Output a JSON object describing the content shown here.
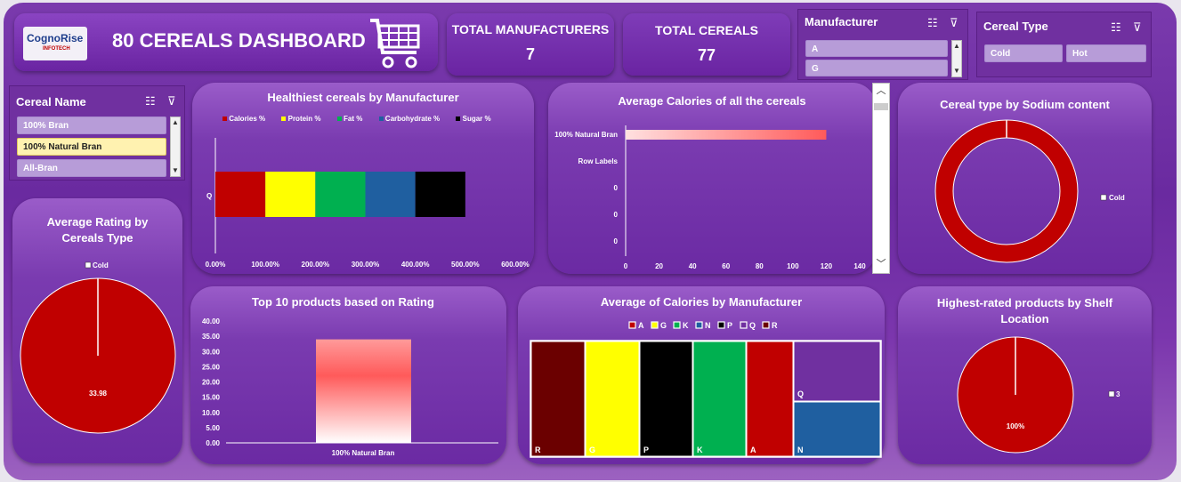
{
  "header": {
    "logo_main": "CognoRise",
    "logo_sub": "INFOTECH",
    "title": "80 CEREALS DASHBOARD"
  },
  "kpis": {
    "manufacturers_label": "TOTAL MANUFACTURERS",
    "manufacturers_value": "7",
    "cereals_label": "TOTAL CEREALS",
    "cereals_value": "77"
  },
  "slicers": {
    "manufacturer": {
      "title": "Manufacturer",
      "items": [
        "A",
        "G"
      ]
    },
    "cereal_type": {
      "title": "Cereal Type",
      "items": [
        "Cold",
        "Hot"
      ]
    },
    "cereal_name": {
      "title": "Cereal Name",
      "items": [
        "100% Bran",
        "100% Natural Bran",
        "All-Bran"
      ],
      "selected": "100% Natural Bran"
    }
  },
  "colors": {
    "calories": "#c00000",
    "protein": "#ffff00",
    "fat": "#00b050",
    "carbs": "#1f5fa0",
    "sugar": "#000000",
    "A": "#c00000",
    "G": "#ffff00",
    "K": "#00b050",
    "N": "#1f5fa0",
    "P": "#000000",
    "Q": "#7030a0",
    "R": "#6b0000"
  },
  "charts": {
    "healthiest": {
      "chart_data": {
        "type": "bar",
        "title": "Healthiest cereals by Manufacturer",
        "categories": [
          "Q"
        ],
        "series": [
          {
            "name": "Calories %",
            "values": [
              1.0
            ]
          },
          {
            "name": "Protein %",
            "values": [
              1.0
            ]
          },
          {
            "name": "Fat %",
            "values": [
              1.0
            ]
          },
          {
            "name": "Carbohydrate %",
            "values": [
              1.0
            ]
          },
          {
            "name": "Sugar %",
            "values": [
              1.0
            ]
          }
        ],
        "xticks": [
          "0.00%",
          "100.00%",
          "200.00%",
          "300.00%",
          "400.00%",
          "500.00%",
          "600.00%"
        ],
        "xlim": [
          0,
          6
        ]
      }
    },
    "avg_calories": {
      "chart_data": {
        "type": "bar",
        "title": "Average Calories of all the cereals",
        "categories": [
          "100% Natural Bran",
          "Row Labels",
          "0",
          "0",
          "0"
        ],
        "values": [
          120,
          0,
          0,
          0,
          0
        ],
        "xticks": [
          "0",
          "20",
          "40",
          "60",
          "80",
          "100",
          "120",
          "140"
        ],
        "xlim": [
          0,
          140
        ]
      }
    },
    "sodium": {
      "chart_data": {
        "type": "pie",
        "title": "Cereal type by Sodium content",
        "labels": [
          "Cold"
        ],
        "values": [
          100
        ],
        "legend": "Cold"
      }
    },
    "avg_rating": {
      "chart_data": {
        "type": "pie",
        "title": "Average Rating by Cereals Type",
        "labels": [
          "Cold"
        ],
        "values": [
          33.98
        ],
        "data_label": "33.98",
        "legend": "Cold"
      }
    },
    "top10": {
      "chart_data": {
        "type": "bar",
        "title": "Top 10 products based on Rating",
        "categories": [
          "100% Natural Bran"
        ],
        "values": [
          33.98
        ],
        "yticks": [
          "40.00",
          "35.00",
          "30.00",
          "25.00",
          "20.00",
          "15.00",
          "10.00",
          "5.00",
          "0.00"
        ],
        "ylim": [
          0,
          40
        ]
      }
    },
    "avg_cal_mfr": {
      "chart_data": {
        "type": "heatmap",
        "title": "Average of Calories by Manufacturer",
        "legend": [
          "A",
          "G",
          "K",
          "N",
          "P",
          "Q",
          "R"
        ],
        "labels": [
          "R",
          "G",
          "P",
          "K",
          "A",
          "Q",
          "N"
        ]
      }
    },
    "shelf": {
      "chart_data": {
        "type": "pie",
        "title": "Highest-rated products by Shelf Location",
        "labels": [
          "3"
        ],
        "values": [
          100
        ],
        "data_label": "100%",
        "legend": "3"
      }
    }
  }
}
